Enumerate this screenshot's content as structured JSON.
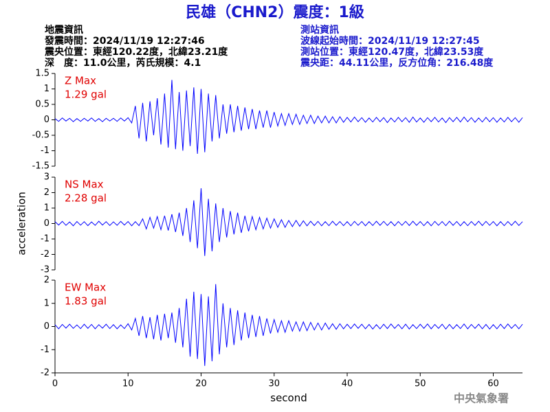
{
  "header": {
    "title": "民雄（CHN2）震度：1級",
    "left": [
      "地震資訊",
      "發震時間：2024/11/19 12:27:46",
      "震央位置：東經120.22度，北緯23.21度",
      "深　度：11.0公里，芮氏規模：4.1"
    ],
    "right": [
      "測站資訊",
      "波線起始時間：2024/11/19 12:27:45",
      "測站位置：東經120.47度，北緯23.53度",
      "震央距：44.11公里，反方位角：216.48度"
    ]
  },
  "footer": "中央氣象署",
  "chart_data": [
    {
      "type": "line",
      "color": "#0000ff",
      "annotation": [
        "Z Max",
        "1.29 gal"
      ],
      "xlim": [
        0,
        64
      ],
      "ylim": [
        -1.5,
        1.5
      ],
      "yticks": [
        -1.5,
        -1,
        -0.5,
        0,
        0.5,
        1,
        1.5
      ],
      "x": [
        0,
        0.5,
        1,
        1.5,
        2,
        2.5,
        3,
        3.5,
        4,
        4.5,
        5,
        5.5,
        6,
        6.5,
        7,
        7.5,
        8,
        8.5,
        9,
        9.5,
        10,
        10.5,
        11,
        11.5,
        12,
        12.5,
        13,
        13.5,
        14,
        14.5,
        15,
        15.5,
        16,
        16.5,
        17,
        17.5,
        18,
        18.5,
        19,
        19.5,
        20,
        20.5,
        21,
        21.5,
        22,
        22.5,
        23,
        23.5,
        24,
        24.5,
        25,
        25.5,
        26,
        26.5,
        27,
        27.5,
        28,
        28.5,
        29,
        29.5,
        30,
        30.5,
        31,
        31.5,
        32,
        32.5,
        33,
        33.5,
        34,
        34.5,
        35,
        35.5,
        36,
        36.5,
        37,
        37.5,
        38,
        38.5,
        39,
        39.5,
        40,
        40.5,
        41,
        41.5,
        42,
        42.5,
        43,
        43.5,
        44,
        44.5,
        45,
        45.5,
        46,
        46.5,
        47,
        47.5,
        48,
        48.5,
        49,
        49.5,
        50,
        50.5,
        51,
        51.5,
        52,
        52.5,
        53,
        53.5,
        54,
        54.5,
        55,
        55.5,
        56,
        56.5,
        57,
        57.5,
        58,
        58.5,
        59,
        59.5,
        60,
        60.5,
        61,
        61.5,
        62,
        62.5,
        63,
        63.5,
        64
      ],
      "values": [
        0.04,
        -0.05,
        0.06,
        -0.04,
        0.05,
        -0.06,
        0.04,
        -0.05,
        0.05,
        -0.04,
        0.06,
        -0.05,
        0.04,
        -0.06,
        0.05,
        -0.04,
        0.05,
        -0.05,
        0.06,
        -0.04,
        0.07,
        -0.1,
        0.45,
        -0.6,
        0.55,
        -0.7,
        0.6,
        -0.5,
        0.7,
        -0.8,
        0.85,
        -0.9,
        1.29,
        -0.95,
        0.9,
        -1.0,
        0.95,
        -0.85,
        1.05,
        -1.1,
        1.0,
        -1.05,
        0.85,
        -0.7,
        0.8,
        -0.6,
        0.5,
        -0.45,
        0.5,
        -0.4,
        0.45,
        -0.35,
        0.4,
        -0.3,
        0.35,
        -0.3,
        0.3,
        -0.25,
        0.3,
        -0.25,
        0.25,
        -0.2,
        0.2,
        -0.18,
        0.2,
        -0.15,
        0.18,
        -0.15,
        0.15,
        -0.12,
        0.15,
        -0.12,
        0.12,
        -0.1,
        0.12,
        -0.1,
        0.1,
        -0.1,
        0.1,
        -0.08,
        0.08,
        -0.07,
        0.09,
        -0.06,
        0.07,
        -0.08,
        0.06,
        -0.07,
        0.08,
        -0.06,
        0.07,
        -0.09,
        0.06,
        -0.07,
        0.08,
        -0.06,
        0.07,
        -0.08,
        0.09,
        -0.07,
        0.06,
        -0.08,
        0.07,
        -0.06,
        0.08,
        -0.07,
        0.06,
        -0.09,
        0.07,
        -0.06,
        0.08,
        -0.07,
        0.09,
        -0.06,
        0.07,
        -0.08,
        0.06,
        -0.07,
        0.08,
        -0.06,
        0.07,
        -0.08,
        0.06,
        -0.07,
        0.08,
        -0.06,
        0.07,
        -0.08,
        0.07
      ]
    },
    {
      "type": "line",
      "color": "#0000ff",
      "annotation": [
        "NS Max",
        "2.28 gal"
      ],
      "ylabel": "acceleration",
      "xlim": [
        0,
        64
      ],
      "ylim": [
        -3,
        3
      ],
      "yticks": [
        -3,
        -2,
        -1,
        0,
        1,
        2,
        3
      ],
      "x": [
        0,
        0.5,
        1,
        1.5,
        2,
        2.5,
        3,
        3.5,
        4,
        4.5,
        5,
        5.5,
        6,
        6.5,
        7,
        7.5,
        8,
        8.5,
        9,
        9.5,
        10,
        10.5,
        11,
        11.5,
        12,
        12.5,
        13,
        13.5,
        14,
        14.5,
        15,
        15.5,
        16,
        16.5,
        17,
        17.5,
        18,
        18.5,
        19,
        19.5,
        20,
        20.5,
        21,
        21.5,
        22,
        22.5,
        23,
        23.5,
        24,
        24.5,
        25,
        25.5,
        26,
        26.5,
        27,
        27.5,
        28,
        28.5,
        29,
        29.5,
        30,
        30.5,
        31,
        31.5,
        32,
        32.5,
        33,
        33.5,
        34,
        34.5,
        35,
        35.5,
        36,
        36.5,
        37,
        37.5,
        38,
        38.5,
        39,
        39.5,
        40,
        40.5,
        41,
        41.5,
        42,
        42.5,
        43,
        43.5,
        44,
        44.5,
        45,
        45.5,
        46,
        46.5,
        47,
        47.5,
        48,
        48.5,
        49,
        49.5,
        50,
        50.5,
        51,
        51.5,
        52,
        52.5,
        53,
        53.5,
        54,
        54.5,
        55,
        55.5,
        56,
        56.5,
        57,
        57.5,
        58,
        58.5,
        59,
        59.5,
        60,
        60.5,
        61,
        61.5,
        62,
        62.5,
        63,
        63.5,
        64
      ],
      "values": [
        0.12,
        -0.1,
        0.14,
        -0.12,
        0.1,
        -0.15,
        0.13,
        -0.11,
        0.12,
        -0.14,
        0.1,
        -0.12,
        0.15,
        -0.1,
        0.12,
        -0.13,
        0.11,
        -0.12,
        0.14,
        -0.1,
        0.13,
        -0.15,
        0.12,
        -0.14,
        0.3,
        -0.35,
        0.4,
        -0.3,
        0.45,
        -0.4,
        0.5,
        -0.45,
        0.6,
        -0.55,
        0.7,
        -0.8,
        1.0,
        -1.2,
        1.5,
        -1.6,
        2.28,
        -2.1,
        1.6,
        -1.8,
        1.3,
        -1.2,
        1.0,
        -0.9,
        0.8,
        -0.7,
        0.7,
        -0.6,
        0.5,
        -0.5,
        0.45,
        -0.4,
        0.4,
        -0.35,
        0.35,
        -0.3,
        0.3,
        -0.25,
        0.25,
        -0.25,
        0.2,
        -0.2,
        0.2,
        -0.18,
        0.18,
        -0.15,
        0.15,
        -0.13,
        0.14,
        -0.15,
        0.12,
        -0.14,
        0.15,
        -0.12,
        0.13,
        -0.14,
        0.12,
        -0.15,
        0.14,
        -0.12,
        0.13,
        -0.15,
        0.12,
        -0.13,
        0.15,
        -0.12,
        0.14,
        -0.13,
        0.12,
        -0.15,
        0.13,
        -0.12,
        0.14,
        -0.13,
        0.15,
        -0.12,
        0.13,
        -0.14,
        0.12,
        -0.15,
        0.14,
        -0.12,
        0.13,
        -0.14,
        0.15,
        -0.12,
        0.13,
        -0.15,
        0.12,
        -0.14,
        0.13,
        -0.12,
        0.15,
        -0.13,
        0.14,
        -0.12,
        0.13,
        -0.15,
        0.12,
        -0.14,
        0.13,
        -0.12,
        0.15,
        -0.13,
        0.12
      ]
    },
    {
      "type": "line",
      "color": "#0000ff",
      "annotation": [
        "EW Max",
        "1.83 gal"
      ],
      "xlabel": "second",
      "xlim": [
        0,
        64
      ],
      "ylim": [
        -2,
        2
      ],
      "yticks": [
        -2,
        -1,
        0,
        1,
        2
      ],
      "xticks": [
        0,
        10,
        20,
        30,
        40,
        50,
        60
      ],
      "x": [
        0,
        0.5,
        1,
        1.5,
        2,
        2.5,
        3,
        3.5,
        4,
        4.5,
        5,
        5.5,
        6,
        6.5,
        7,
        7.5,
        8,
        8.5,
        9,
        9.5,
        10,
        10.5,
        11,
        11.5,
        12,
        12.5,
        13,
        13.5,
        14,
        14.5,
        15,
        15.5,
        16,
        16.5,
        17,
        17.5,
        18,
        18.5,
        19,
        19.5,
        20,
        20.5,
        21,
        21.5,
        22,
        22.5,
        23,
        23.5,
        24,
        24.5,
        25,
        25.5,
        26,
        26.5,
        27,
        27.5,
        28,
        28.5,
        29,
        29.5,
        30,
        30.5,
        31,
        31.5,
        32,
        32.5,
        33,
        33.5,
        34,
        34.5,
        35,
        35.5,
        36,
        36.5,
        37,
        37.5,
        38,
        38.5,
        39,
        39.5,
        40,
        40.5,
        41,
        41.5,
        42,
        42.5,
        43,
        43.5,
        44,
        44.5,
        45,
        45.5,
        46,
        46.5,
        47,
        47.5,
        48,
        48.5,
        49,
        49.5,
        50,
        50.5,
        51,
        51.5,
        52,
        52.5,
        53,
        53.5,
        54,
        54.5,
        55,
        55.5,
        56,
        56.5,
        57,
        57.5,
        58,
        58.5,
        59,
        59.5,
        60,
        60.5,
        61,
        61.5,
        62,
        62.5,
        63,
        63.5,
        64
      ],
      "values": [
        0.08,
        -0.1,
        0.09,
        -0.07,
        0.1,
        -0.08,
        0.07,
        -0.09,
        0.1,
        -0.08,
        0.09,
        -0.1,
        0.08,
        -0.07,
        0.1,
        -0.09,
        0.08,
        -0.1,
        0.07,
        -0.09,
        0.12,
        -0.15,
        0.35,
        -0.4,
        0.45,
        -0.5,
        0.4,
        -0.55,
        0.5,
        -0.6,
        0.55,
        -0.5,
        0.6,
        -0.7,
        0.8,
        -0.9,
        1.2,
        -1.3,
        1.5,
        -1.4,
        1.4,
        -1.7,
        1.3,
        -1.5,
        1.83,
        -1.2,
        1.0,
        -0.9,
        0.8,
        -0.8,
        0.7,
        -0.6,
        0.6,
        -0.5,
        0.5,
        -0.45,
        0.45,
        -0.4,
        0.35,
        -0.3,
        0.3,
        -0.25,
        0.25,
        -0.25,
        0.25,
        -0.2,
        0.2,
        -0.2,
        0.2,
        -0.18,
        0.18,
        -0.15,
        0.15,
        -0.15,
        0.15,
        -0.12,
        0.12,
        -0.12,
        0.12,
        -0.1,
        0.1,
        -0.09,
        0.11,
        -0.08,
        0.1,
        -0.1,
        0.09,
        -0.11,
        0.08,
        -0.1,
        0.1,
        -0.09,
        0.11,
        -0.08,
        0.09,
        -0.1,
        0.1,
        -0.11,
        0.08,
        -0.09,
        0.1,
        -0.08,
        0.11,
        -0.1,
        0.09,
        -0.08,
        0.1,
        -0.11,
        0.09,
        -0.1,
        0.08,
        -0.09,
        0.11,
        -0.1,
        0.09,
        -0.08,
        0.1,
        -0.1,
        0.09,
        -0.11,
        0.08,
        -0.1,
        0.1,
        -0.09,
        0.11,
        -0.08,
        0.09,
        -0.1,
        0.1
      ]
    }
  ]
}
